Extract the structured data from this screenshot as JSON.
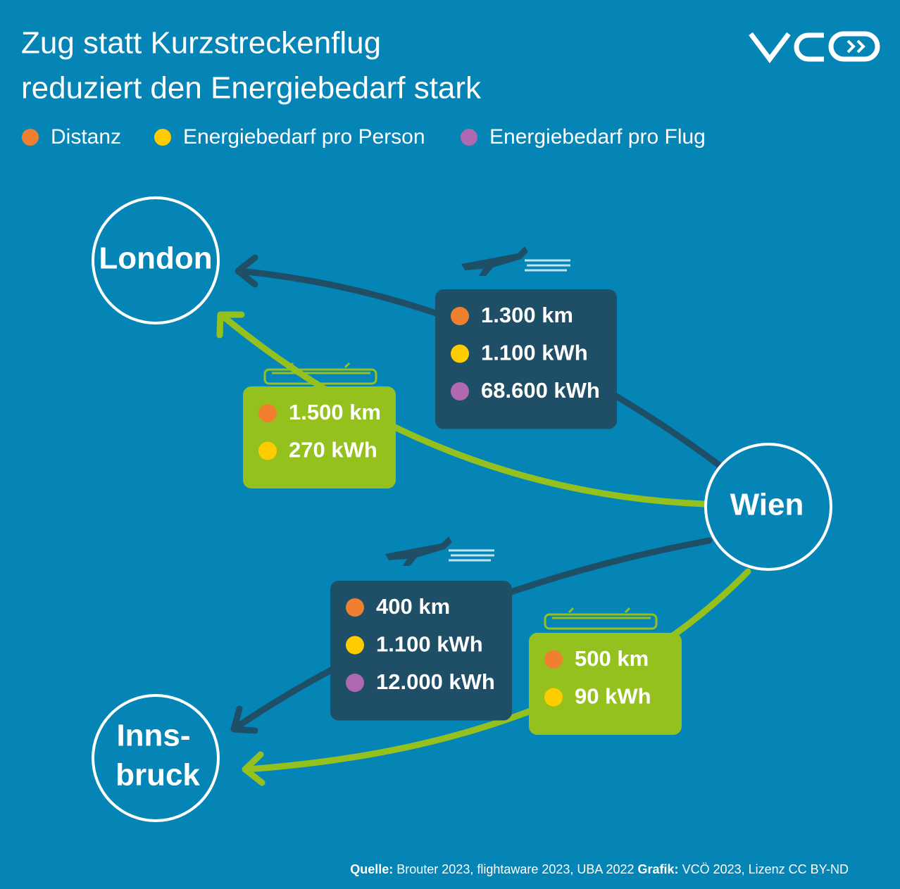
{
  "header": {
    "title_lines": [
      "Zug statt Kurzstreckenflug",
      "reduziert den Energiebedarf stark"
    ]
  },
  "legend": [
    "Distanz",
    "Energiebedarf pro Person",
    "Energiebedarf pro Flug"
  ],
  "nodes": [
    {
      "label_lines": [
        "London"
      ]
    },
    {
      "label_lines": [
        "Wien"
      ]
    },
    {
      "label_lines": [
        "Inns-",
        "bruck"
      ]
    }
  ],
  "routes": [
    {
      "mode": "flight",
      "to": "London",
      "rows": [
        "1.300 km",
        "1.100 kWh",
        "68.600 kWh"
      ]
    },
    {
      "mode": "train",
      "to": "London",
      "rows": [
        "1.500 km",
        "270 kWh"
      ]
    },
    {
      "mode": "flight",
      "to": "Innsbruck",
      "rows": [
        "400 km",
        "1.100 kWh",
        "12.000 kWh"
      ]
    },
    {
      "mode": "train",
      "to": "Innsbruck",
      "rows": [
        "500 km",
        "90 kWh"
      ]
    }
  ],
  "footer": {
    "source_label": "Quelle:",
    "source": "Brouter 2023, flightaware 2023, UBA 2022",
    "credit_label": "Grafik:",
    "credit": "VCÖ 2023, Lizenz CC BY-ND"
  }
}
